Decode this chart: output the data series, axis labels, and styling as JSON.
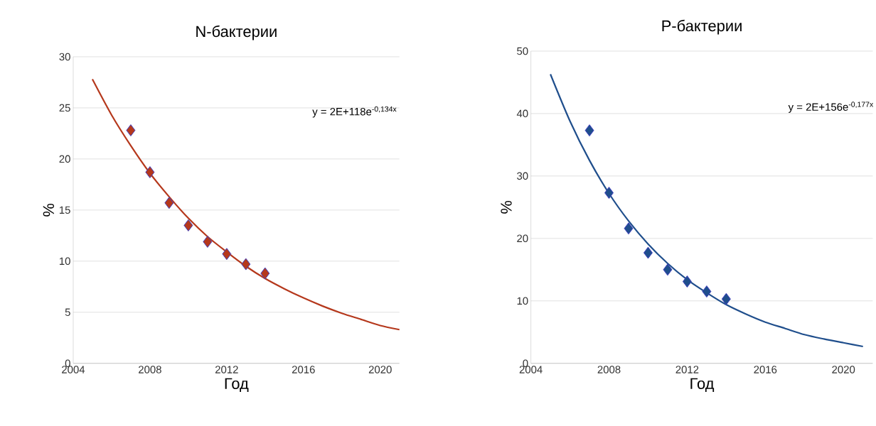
{
  "chart_data": [
    {
      "type": "line",
      "title": "N-бактерии",
      "xlabel": "Год",
      "ylabel": "%",
      "xlim": [
        2004,
        2021
      ],
      "ylim": [
        0,
        30
      ],
      "xticks": [
        2004,
        2008,
        2012,
        2016,
        2020
      ],
      "yticks": [
        0,
        5,
        10,
        15,
        20,
        25,
        30
      ],
      "grid": "y",
      "annotations": [
        "y = 2E+118e$^{-0,134x}$"
      ],
      "series": [
        {
          "color": "#b5381c",
          "marker": "none",
          "x": [
            2005,
            2006,
            2007,
            2008,
            2009,
            2010,
            2011,
            2012,
            2013,
            2014,
            2015,
            2016,
            2017,
            2018,
            2019,
            2020,
            2021
          ],
          "values": [
            27.8,
            24.3,
            21.3,
            18.6,
            16.3,
            14.2,
            12.4,
            10.9,
            9.5,
            8.3,
            7.3,
            6.4,
            5.6,
            4.9,
            4.3,
            3.7,
            3.3
          ]
        },
        {
          "type": "scatter",
          "marker": "diamond",
          "color": "#b5381c",
          "x": [
            2007,
            2008,
            2009,
            2010,
            2011,
            2012,
            2013,
            2014
          ],
          "values": [
            22.8,
            18.7,
            15.7,
            13.5,
            11.9,
            10.7,
            9.7,
            8.8
          ]
        }
      ]
    },
    {
      "type": "line",
      "title": "P-бактерии",
      "xlabel": "Год",
      "ylabel": "%",
      "xlim": [
        2004,
        2021.5
      ],
      "ylim": [
        0,
        50
      ],
      "xticks": [
        2004,
        2008,
        2012,
        2016,
        2020
      ],
      "yticks": [
        0,
        10,
        20,
        30,
        40,
        50
      ],
      "grid": "y",
      "annotations": [
        "y = 2E+156e$^{-0,177x}$"
      ],
      "series": [
        {
          "color": "#1f4e8c",
          "marker": "none",
          "x": [
            2005,
            2006,
            2007,
            2008,
            2009,
            2010,
            2011,
            2012,
            2013,
            2014,
            2015,
            2016,
            2017,
            2018,
            2019,
            2020,
            2021
          ],
          "values": [
            46.3,
            38.8,
            32.5,
            27.2,
            22.8,
            19.1,
            16.0,
            13.4,
            11.3,
            9.4,
            7.9,
            6.6,
            5.6,
            4.6,
            3.9,
            3.3,
            2.7
          ]
        },
        {
          "type": "scatter",
          "marker": "diamond",
          "color": "#1f4e8c",
          "x": [
            2007,
            2008,
            2009,
            2010,
            2011,
            2012,
            2013,
            2014
          ],
          "values": [
            37.3,
            27.3,
            21.6,
            17.7,
            15.0,
            13.1,
            11.5,
            10.3
          ]
        }
      ]
    }
  ]
}
